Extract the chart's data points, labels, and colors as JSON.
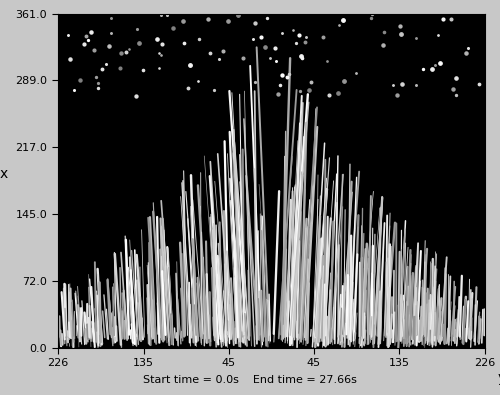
{
  "background_color": "#000000",
  "fig_bg_color": "#c8c8c8",
  "x_label": "x",
  "y_label": "y",
  "left_tick_labels": [
    "361.0",
    "289.0",
    "217.0",
    "145.0",
    "72.0",
    "0.0"
  ],
  "left_tick_positions": [
    361,
    289,
    217,
    145,
    72,
    0
  ],
  "bottom_tick_labels": [
    "226",
    "135",
    "45",
    "45",
    "135",
    "226"
  ],
  "bottom_tick_positions": [
    -226,
    -135,
    -45,
    45,
    135,
    226
  ],
  "x_range": [
    0,
    361
  ],
  "y_range": [
    -226,
    226
  ],
  "bottom_text": "Start time = 0.0s    End time = 27.66s",
  "n_streams": 600,
  "seed": 12345
}
